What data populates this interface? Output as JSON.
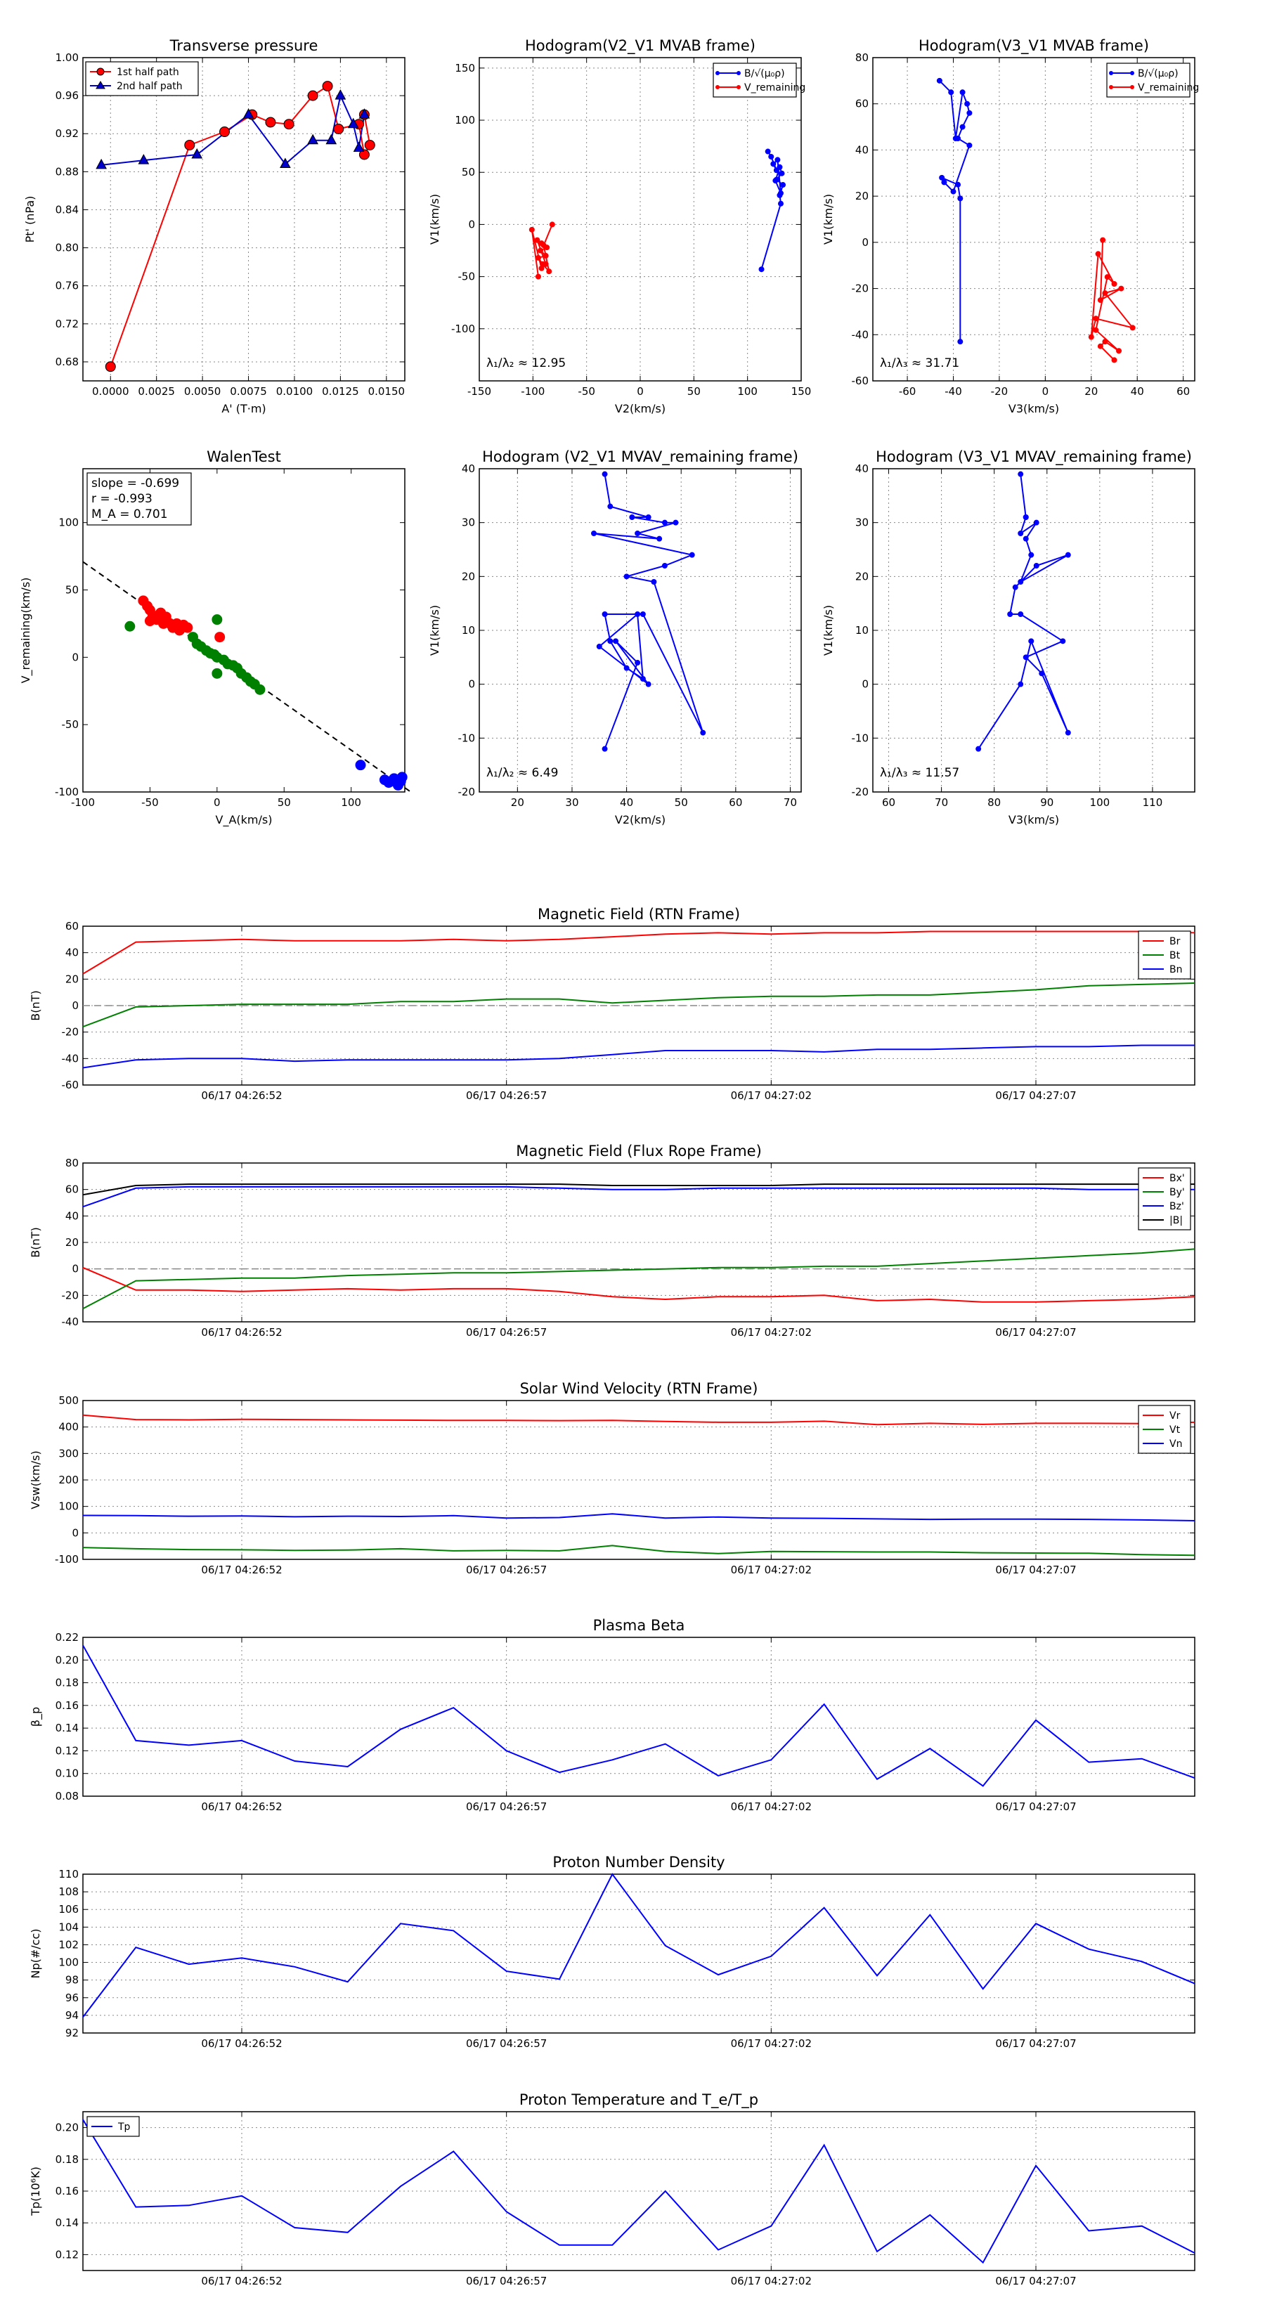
{
  "charts": {
    "tp": {
      "type": "scatter",
      "title": "Transverse pressure",
      "xlabel": "A' (T·m)",
      "ylabel": "Pt' (nPa)",
      "xlim": [
        -0.0015,
        0.016
      ],
      "ylim": [
        0.66,
        1.0
      ],
      "xticks": [
        0.0,
        0.0025,
        0.005,
        0.0075,
        0.01,
        0.0125,
        0.015
      ],
      "xticklabels": [
        "0.0000",
        "0.0025",
        "0.0050",
        "0.0075",
        "0.0100",
        "0.0125",
        "0.0150"
      ],
      "yticks": [
        0.68,
        0.72,
        0.76,
        0.8,
        0.84,
        0.88,
        0.92,
        0.96,
        1.0
      ],
      "yticklabels": [
        "0.68",
        "0.72",
        "0.76",
        "0.80",
        "0.84",
        "0.88",
        "0.92",
        "0.96",
        "1.00"
      ],
      "series": [
        {
          "name": "1st half path",
          "color": "#ff0000",
          "marker": "circle",
          "x": [
            0.0,
            0.0043,
            0.0062,
            0.0077,
            0.0087,
            0.0097,
            0.011,
            0.0118,
            0.0124,
            0.0135,
            0.0138,
            0.0141,
            0.0138
          ],
          "y": [
            0.675,
            0.908,
            0.922,
            0.94,
            0.932,
            0.93,
            0.96,
            0.97,
            0.925,
            0.93,
            0.898,
            0.908,
            0.94
          ]
        },
        {
          "name": "2nd half path",
          "color": "#0000cc",
          "marker": "triangle",
          "x": [
            -0.0005,
            0.0018,
            0.0047,
            0.0075,
            0.0095,
            0.011,
            0.012,
            0.0125,
            0.0132,
            0.0135,
            0.0138
          ],
          "y": [
            0.887,
            0.892,
            0.898,
            0.94,
            0.888,
            0.913,
            0.913,
            0.96,
            0.93,
            0.905,
            0.94
          ]
        }
      ]
    },
    "h1": {
      "type": "line",
      "title": "Hodogram(V2_V1 MVAB frame)",
      "xlabel": "V2(km/s)",
      "ylabel": "V1(km/s)",
      "xlim": [
        -150,
        150
      ],
      "ylim": [
        -150,
        160
      ],
      "xticks": [
        -150,
        -100,
        -50,
        0,
        50,
        100,
        150
      ],
      "yticks": [
        -100,
        -50,
        0,
        50,
        100,
        150
      ],
      "legend": [
        "B/√(μ₀ρ)",
        "V_remaining"
      ],
      "annotation": "λ₁/λ₂ ≈ 12.95",
      "series": [
        {
          "name": "B/√(μ₀ρ)",
          "color": "#0000ff",
          "x": [
            113,
            131,
            130,
            133,
            127,
            132,
            130,
            126,
            131,
            128,
            124,
            127,
            122,
            119
          ],
          "y": [
            -43,
            20,
            28,
            38,
            43,
            49,
            55,
            42,
            30,
            62,
            58,
            52,
            65,
            70
          ]
        },
        {
          "name": "V_remaining",
          "color": "#ff0000",
          "x": [
            -82,
            -90,
            -85,
            -91,
            -95,
            -88,
            -93,
            -87,
            -92,
            -96,
            -88,
            -92,
            -101,
            -95
          ],
          "y": [
            0,
            -20,
            -45,
            -38,
            -32,
            -30,
            -25,
            -22,
            -18,
            -15,
            -38,
            -42,
            -5,
            -50
          ]
        }
      ]
    },
    "h2": {
      "type": "line",
      "title": "Hodogram(V3_V1 MVAB frame)",
      "xlabel": "V3(km/s)",
      "ylabel": "V1(km/s)",
      "xlim": [
        -75,
        65
      ],
      "ylim": [
        -60,
        80
      ],
      "xticks": [
        -60,
        -40,
        -20,
        0,
        20,
        40,
        60
      ],
      "yticks": [
        -60,
        -40,
        -20,
        0,
        20,
        40,
        60,
        80
      ],
      "legend": [
        "B/√(μ₀ρ)",
        "V_remaining"
      ],
      "annotation": "λ₁/λ₃ ≈ 31.71",
      "series": [
        {
          "name": "B/√(μ₀ρ)",
          "color": "#0000ff",
          "x": [
            -37,
            -37,
            -38,
            -45,
            -44,
            -40,
            -33,
            -38,
            -36,
            -33,
            -34,
            -36,
            -39,
            -41,
            -46
          ],
          "y": [
            -43,
            19,
            25,
            28,
            26,
            22,
            42,
            45,
            50,
            56,
            60,
            65,
            45,
            65,
            70
          ]
        },
        {
          "name": "V_remaining",
          "color": "#ff0000",
          "x": [
            25,
            24,
            33,
            26,
            38,
            22,
            20,
            23,
            30,
            27,
            22,
            32,
            26,
            24,
            30
          ],
          "y": [
            1,
            -25,
            -20,
            -22,
            -37,
            -33,
            -41,
            -5,
            -18,
            -15,
            -38,
            -47,
            -43,
            -45,
            -51
          ]
        }
      ]
    },
    "walen": {
      "type": "scatter",
      "title": "WalenTest",
      "xlabel": "V_A(km/s)",
      "ylabel": "V_remaining(km/s)",
      "xlim": [
        -100,
        140
      ],
      "ylim": [
        -100,
        140
      ],
      "xticks": [
        -100,
        -50,
        0,
        50,
        100
      ],
      "yticks": [
        -100,
        -50,
        0,
        50,
        100
      ],
      "stats": [
        "slope = -0.699",
        "r = -0.993",
        "M_A = 0.701"
      ],
      "fit": {
        "slope": -0.699,
        "intercept": 1
      },
      "series": [
        {
          "name": "red",
          "color": "#ff0000",
          "x": [
            -55,
            -52,
            -50,
            -48,
            -45,
            -42,
            -40,
            -38,
            -35,
            -33,
            -30,
            -28,
            -25,
            -22,
            -50,
            -44,
            2
          ],
          "y": [
            42,
            38,
            35,
            30,
            28,
            33,
            25,
            30,
            25,
            22,
            25,
            20,
            24,
            22,
            27,
            31,
            15
          ]
        },
        {
          "name": "green",
          "color": "#008000",
          "x": [
            -65,
            -18,
            -15,
            -12,
            -8,
            -5,
            -2,
            0,
            5,
            8,
            12,
            15,
            18,
            22,
            25,
            28,
            32,
            0,
            0
          ],
          "y": [
            23,
            15,
            10,
            8,
            5,
            3,
            2,
            0,
            -2,
            -5,
            -6,
            -8,
            -12,
            -15,
            -18,
            -20,
            -24,
            28,
            -12
          ]
        },
        {
          "name": "blue",
          "color": "#0000ff",
          "x": [
            107,
            125,
            128,
            130,
            132,
            135,
            137,
            138
          ],
          "y": [
            -80,
            -91,
            -93,
            -92,
            -90,
            -95,
            -92,
            -89
          ]
        }
      ]
    },
    "h3": {
      "type": "line",
      "title": "Hodogram (V2_V1 MVAV_remaining frame)",
      "xlabel": "V2(km/s)",
      "ylabel": "V1(km/s)",
      "xlim": [
        13,
        72
      ],
      "ylim": [
        -20,
        40
      ],
      "xticks": [
        20,
        30,
        40,
        50,
        60,
        70
      ],
      "yticks": [
        -20,
        -10,
        0,
        10,
        20,
        30,
        40
      ],
      "annotation": "λ₁/λ₂ ≈ 6.49",
      "series": [
        {
          "name": "path",
          "color": "#0000ff",
          "x": [
            36,
            42,
            38,
            44,
            35,
            42,
            43,
            40,
            37,
            36,
            43,
            54,
            45,
            40,
            47,
            52,
            34,
            46,
            42,
            49,
            47,
            41,
            44,
            37,
            36
          ],
          "y": [
            -12,
            4,
            8,
            0,
            7,
            13,
            1,
            3,
            8,
            13,
            13,
            -9,
            19,
            20,
            22,
            24,
            28,
            27,
            28,
            30,
            30,
            31,
            31,
            33,
            39
          ]
        }
      ]
    },
    "h4": {
      "type": "line",
      "title": "Hodogram (V3_V1 MVAV_remaining frame)",
      "xlabel": "V3(km/s)",
      "ylabel": "V1(km/s)",
      "xlim": [
        57,
        118
      ],
      "ylim": [
        -20,
        40
      ],
      "xticks": [
        60,
        70,
        80,
        90,
        100,
        110
      ],
      "yticks": [
        -20,
        -10,
        0,
        10,
        20,
        30,
        40
      ],
      "annotation": "λ₁/λ₃ ≈ 11.57",
      "series": [
        {
          "name": "path",
          "color": "#0000ff",
          "x": [
            77,
            85,
            87,
            94,
            89,
            86,
            93,
            85,
            83,
            84,
            88,
            94,
            85,
            87,
            86,
            88,
            85,
            86,
            86,
            85
          ],
          "y": [
            -12,
            0,
            8,
            -9,
            2,
            5,
            8,
            13,
            13,
            18,
            22,
            24,
            19,
            24,
            27,
            30,
            28,
            31,
            31,
            39
          ]
        }
      ]
    },
    "ts": {
      "xticklabels": [
        "06/17 04:26:52",
        "06/17 04:26:57",
        "06/17 04:27:02",
        "06/17 04:27:07"
      ],
      "xtick_index": [
        3,
        8,
        13,
        18
      ],
      "npoints": 22
    },
    "b_rtn": {
      "type": "line",
      "title": "Magnetic Field (RTN Frame)",
      "ylabel": "B(nT)",
      "ylim": [
        -60,
        60
      ],
      "yticks": [
        -60,
        -40,
        -20,
        0,
        20,
        40,
        60
      ],
      "zero_line": true,
      "series": [
        {
          "name": "Br",
          "color": "#ff0000",
          "values": [
            24,
            48,
            49,
            50,
            49,
            49,
            49,
            50,
            49,
            50,
            52,
            54,
            55,
            54,
            55,
            55,
            56,
            56,
            56,
            56,
            56,
            55
          ]
        },
        {
          "name": "Bt",
          "color": "#008000",
          "values": [
            -16,
            -1,
            0,
            1,
            1,
            1,
            3,
            3,
            5,
            5,
            2,
            4,
            6,
            7,
            7,
            8,
            8,
            10,
            12,
            15,
            16,
            17
          ]
        },
        {
          "name": "Bn",
          "color": "#0000ff",
          "values": [
            -47,
            -41,
            -40,
            -40,
            -42,
            -41,
            -41,
            -41,
            -41,
            -40,
            -37,
            -34,
            -34,
            -34,
            -35,
            -33,
            -33,
            -32,
            -31,
            -31,
            -30,
            -30
          ]
        }
      ]
    },
    "b_fr": {
      "type": "line",
      "title": "Magnetic Field (Flux Rope Frame)",
      "ylabel": "B(nT)",
      "ylim": [
        -40,
        80
      ],
      "yticks": [
        -40,
        -20,
        0,
        20,
        40,
        60,
        80
      ],
      "zero_line": true,
      "series": [
        {
          "name": "Bx'",
          "color": "#ff0000",
          "values": [
            1,
            -16,
            -16,
            -17,
            -16,
            -15,
            -16,
            -15,
            -15,
            -17,
            -21,
            -23,
            -21,
            -21,
            -20,
            -24,
            -23,
            -25,
            -25,
            -24,
            -23,
            -21
          ]
        },
        {
          "name": "By'",
          "color": "#008000",
          "values": [
            -30,
            -9,
            -8,
            -7,
            -7,
            -5,
            -4,
            -3,
            -3,
            -2,
            -1,
            0,
            1,
            1,
            2,
            2,
            4,
            6,
            8,
            10,
            12,
            15
          ]
        },
        {
          "name": "Bz'",
          "color": "#0000ff",
          "values": [
            47,
            61,
            62,
            62,
            62,
            62,
            62,
            62,
            62,
            61,
            60,
            60,
            61,
            61,
            61,
            61,
            61,
            61,
            61,
            60,
            60,
            60
          ]
        },
        {
          "name": "|B|",
          "color": "#000000",
          "values": [
            56,
            63,
            64,
            64,
            64,
            64,
            64,
            64,
            64,
            64,
            63,
            63,
            63,
            63,
            64,
            64,
            64,
            64,
            64,
            64,
            64,
            64
          ]
        }
      ]
    },
    "vsw": {
      "type": "line",
      "title": "Solar Wind Velocity (RTN Frame)",
      "ylabel": "Vsw(km/s)",
      "ylim": [
        -100,
        500
      ],
      "yticks": [
        -100,
        0,
        100,
        200,
        300,
        400,
        500
      ],
      "series": [
        {
          "name": "Vr",
          "color": "#ff0000",
          "values": [
            445,
            428,
            427,
            429,
            428,
            427,
            426,
            425,
            425,
            424,
            425,
            421,
            418,
            418,
            422,
            409,
            414,
            410,
            414,
            414,
            413,
            418
          ]
        },
        {
          "name": "Vt",
          "color": "#008000",
          "values": [
            -55,
            -60,
            -63,
            -64,
            -66,
            -65,
            -60,
            -68,
            -66,
            -68,
            -48,
            -70,
            -78,
            -70,
            -71,
            -72,
            -72,
            -75,
            -76,
            -77,
            -82,
            -85
          ]
        },
        {
          "name": "Vn",
          "color": "#0000ff",
          "values": [
            66,
            65,
            63,
            64,
            61,
            63,
            62,
            65,
            56,
            58,
            72,
            56,
            60,
            56,
            55,
            53,
            51,
            52,
            52,
            51,
            49,
            46
          ]
        }
      ]
    },
    "beta": {
      "type": "line",
      "title": "Plasma Beta",
      "ylabel": "β_p",
      "ylim": [
        0.08,
        0.22
      ],
      "yticks": [
        0.08,
        0.1,
        0.12,
        0.14,
        0.16,
        0.18,
        0.2,
        0.22
      ],
      "yticklabels": [
        "0.08",
        "0.10",
        "0.12",
        "0.14",
        "0.16",
        "0.18",
        "0.20",
        "0.22"
      ],
      "series": [
        {
          "name": "beta",
          "color": "#0000ff",
          "values": [
            0.213,
            0.129,
            0.125,
            0.129,
            0.111,
            0.106,
            0.139,
            0.158,
            0.12,
            0.101,
            0.112,
            0.126,
            0.098,
            0.112,
            0.161,
            0.095,
            0.122,
            0.089,
            0.147,
            0.11,
            0.113,
            0.096
          ]
        }
      ]
    },
    "np": {
      "type": "line",
      "title": "Proton Number Density",
      "ylabel": "Np(#/cc)",
      "ylim": [
        92,
        110
      ],
      "yticks": [
        92,
        94,
        96,
        98,
        100,
        102,
        104,
        106,
        108,
        110
      ],
      "series": [
        {
          "name": "Np",
          "color": "#0000ff",
          "values": [
            93.8,
            101.7,
            99.8,
            100.5,
            99.5,
            97.8,
            104.4,
            103.6,
            99.0,
            98.1,
            110.0,
            101.9,
            98.6,
            100.7,
            106.2,
            98.5,
            105.4,
            97.0,
            104.4,
            101.5,
            100.1,
            97.6
          ]
        }
      ]
    },
    "tp2": {
      "type": "line",
      "title": "Proton Temperature and T_e/T_p",
      "ylabel": "Tp(10⁶K)",
      "ylim": [
        0.11,
        0.21
      ],
      "yticks": [
        0.12,
        0.14,
        0.16,
        0.18,
        0.2
      ],
      "yticklabels": [
        "0.12",
        "0.14",
        "0.16",
        "0.18",
        "0.20"
      ],
      "legend": [
        "Tp"
      ],
      "series": [
        {
          "name": "Tp",
          "color": "#0000ff",
          "values": [
            0.205,
            0.15,
            0.151,
            0.157,
            0.137,
            0.134,
            0.163,
            0.185,
            0.147,
            0.126,
            0.126,
            0.16,
            0.123,
            0.138,
            0.189,
            0.122,
            0.145,
            0.115,
            0.176,
            0.135,
            0.138,
            0.121
          ]
        }
      ]
    }
  }
}
